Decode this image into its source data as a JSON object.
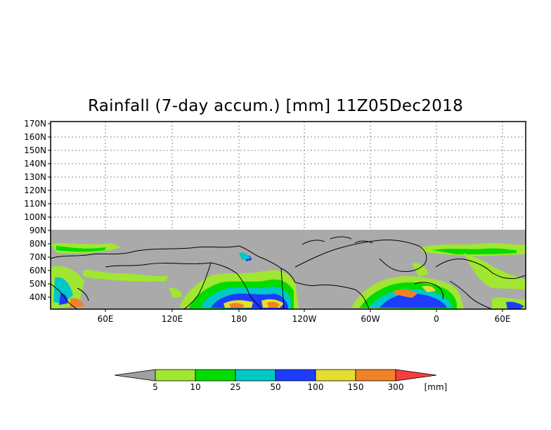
{
  "title": "Rainfall (7-day accum.) [mm] 11Z05Dec2018",
  "lat_labels": [
    "170N",
    "160N",
    "150N",
    "140N",
    "130N",
    "120N",
    "110N",
    "100N",
    "90N",
    "80N",
    "70N",
    "60N",
    "50N",
    "40N"
  ],
  "lon_labels": [
    "60E",
    "120E",
    "180",
    "120W",
    "60W",
    "0",
    "60E"
  ],
  "colorbar": {
    "ticks": [
      "5",
      "10",
      "25",
      "50",
      "100",
      "150",
      "300"
    ],
    "unit": "[mm]",
    "colors": {
      "under": "#a0a0a0",
      "c1": "#a0e632",
      "c2": "#00dc00",
      "c3": "#00c8c8",
      "c4": "#1e3cff",
      "c5": "#e6dc32",
      "c6": "#f08228",
      "over": "#fa3c3c"
    }
  },
  "map": {
    "no_data_color": "#aaaaaa",
    "grid": "dotted"
  }
}
